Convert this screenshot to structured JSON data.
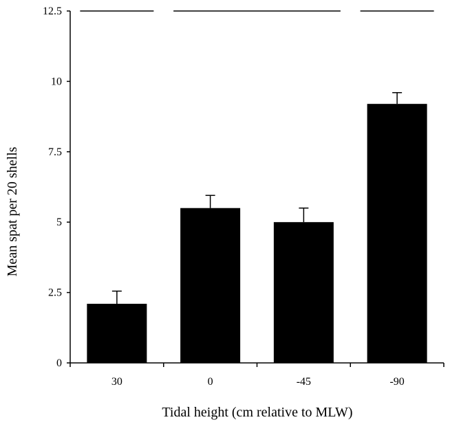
{
  "chart_data": {
    "type": "bar",
    "title": "",
    "xlabel": "Tidal height (cm relative to MLW)",
    "ylabel": "Mean spat per 20 shells",
    "categories": [
      "30",
      "0",
      "-45",
      "-90"
    ],
    "values": [
      2.1,
      5.5,
      5.0,
      9.2
    ],
    "error_bars": [
      0.45,
      0.45,
      0.5,
      0.4
    ],
    "ylim": [
      0,
      12.5
    ],
    "y_ticks": [
      {
        "value": 0,
        "label": "0"
      },
      {
        "value": 2.5,
        "label": "2.5"
      },
      {
        "value": 5,
        "label": "5"
      },
      {
        "value": 7.5,
        "label": "7.5"
      },
      {
        "value": 10,
        "label": "10"
      },
      {
        "value": 12.5,
        "label": "12.5"
      }
    ],
    "significance_groups": [
      {
        "from": "30",
        "to": "30"
      },
      {
        "from": "0",
        "to": "-45"
      },
      {
        "from": "-90",
        "to": "-90"
      }
    ],
    "grid": false,
    "legend": "none",
    "bar_color": "#000000"
  }
}
